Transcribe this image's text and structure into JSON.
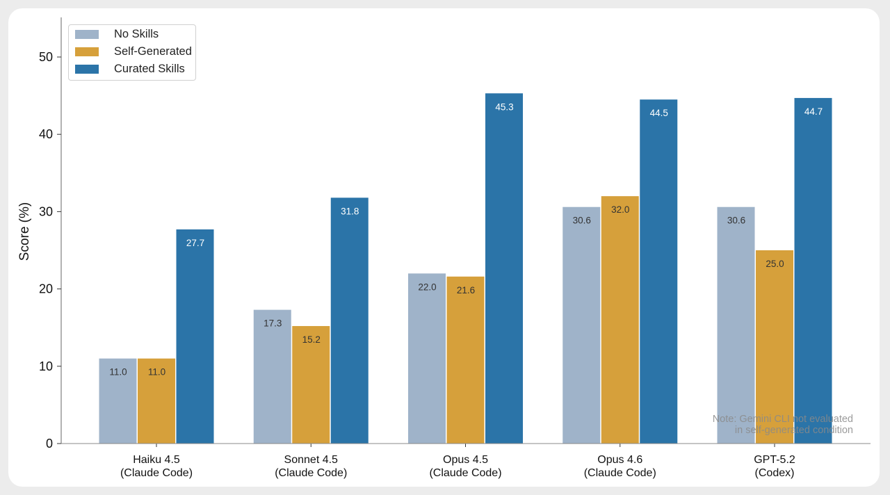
{
  "chart_data": {
    "type": "bar",
    "title": "",
    "xlabel": "",
    "ylabel": "Score (%)",
    "ylim": [
      0,
      55
    ],
    "yticks": [
      0,
      10,
      20,
      30,
      40,
      50
    ],
    "grid": false,
    "legend_position": "top-left",
    "categories": [
      {
        "line1": "Haiku 4.5",
        "line2": "(Claude Code)"
      },
      {
        "line1": "Sonnet 4.5",
        "line2": "(Claude Code)"
      },
      {
        "line1": "Opus 4.5",
        "line2": "(Claude Code)"
      },
      {
        "line1": "Opus 4.6",
        "line2": "(Claude Code)"
      },
      {
        "line1": "GPT-5.2",
        "line2": "(Codex)"
      }
    ],
    "series": [
      {
        "name": "No Skills",
        "color": "#9fb3c9",
        "label_color": "#333333",
        "values": [
          11.0,
          17.3,
          22.0,
          30.6,
          30.6
        ]
      },
      {
        "name": "Self-Generated",
        "color": "#d6a03b",
        "label_color": "#333333",
        "values": [
          11.0,
          15.2,
          21.6,
          32.0,
          25.0
        ]
      },
      {
        "name": "Curated Skills",
        "color": "#2b74a8",
        "label_color": "#ffffff",
        "values": [
          27.7,
          31.8,
          45.3,
          44.5,
          44.7
        ]
      }
    ],
    "annotation": {
      "line1": "Note: Gemini CLI not evaluated",
      "line2": "in self-generated condition"
    }
  }
}
